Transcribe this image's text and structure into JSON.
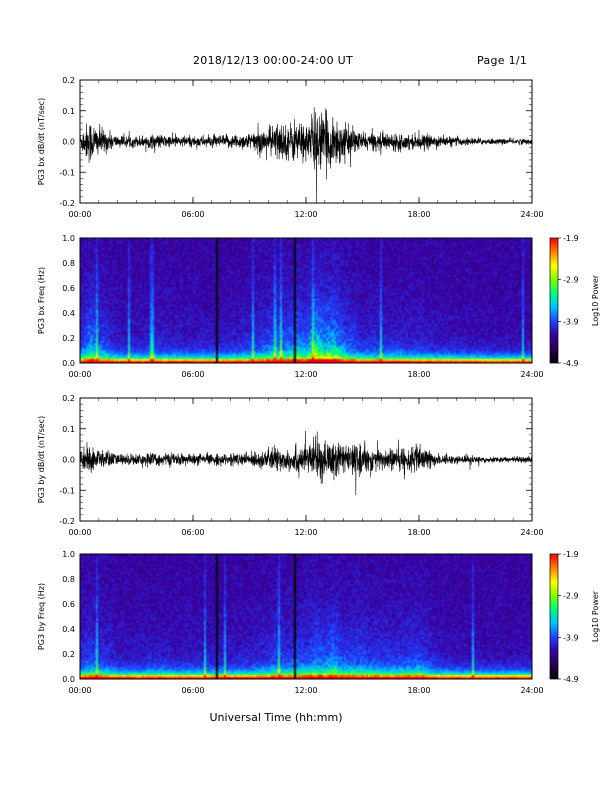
{
  "header": {
    "date_range": "2018/12/13  00:00-24:00 UT",
    "page": "Page 1/1"
  },
  "x_axis_label": "Universal Time (hh:mm)",
  "colors": {
    "trace": "#000000",
    "colorbar": [
      "#000000",
      "#2a0050",
      "#3a00a0",
      "#2040ff",
      "#00c0ff",
      "#00ff80",
      "#80ff00",
      "#ffff00",
      "#ff8000",
      "#ff0000"
    ]
  },
  "chart_data": [
    {
      "type": "line",
      "ylabel": "PG3 bx dB/dt (nT/sec)",
      "ylim": [
        -0.2,
        0.2
      ],
      "yticks": [
        "0.2",
        "0.1",
        "0.0",
        "-0.1",
        "-0.2"
      ],
      "xlim": [
        "00:00",
        "24:00"
      ],
      "xticks": [
        "00:00",
        "06:00",
        "12:00",
        "18:00",
        "24:00"
      ],
      "amplitude_envelope": {
        "hours": [
          0,
          0.5,
          1,
          2,
          3,
          4,
          5,
          6,
          7,
          8,
          9,
          10,
          10.5,
          11,
          11.5,
          12,
          12.5,
          13,
          13.5,
          14,
          15,
          16,
          17,
          18,
          19,
          20,
          22,
          24
        ],
        "amplitude": [
          0.03,
          0.08,
          0.05,
          0.02,
          0.02,
          0.025,
          0.02,
          0.02,
          0.02,
          0.025,
          0.03,
          0.05,
          0.07,
          0.06,
          0.08,
          0.06,
          0.12,
          0.09,
          0.1,
          0.06,
          0.03,
          0.03,
          0.03,
          0.025,
          0.02,
          0.015,
          0.01,
          0.01
        ]
      }
    },
    {
      "type": "heatmap",
      "ylabel": "PG3 bx Freq (Hz)",
      "ylim": [
        0.0,
        1.0
      ],
      "yticks": [
        "1.0",
        "0.8",
        "0.6",
        "0.4",
        "0.2",
        "0.0"
      ],
      "xticks": [
        "00:00",
        "06:00",
        "12:00",
        "18:00",
        "24:00"
      ],
      "colorbar": {
        "label": "Log10 Power",
        "ticks": [
          "-1.9",
          "-2.9",
          "-3.9",
          "-4.9"
        ],
        "range": [
          -4.9,
          -1.9
        ]
      },
      "data_gaps_hours": [
        7.2,
        11.4
      ]
    },
    {
      "type": "line",
      "ylabel": "PG3 by dB/dt (nT/sec)",
      "ylim": [
        -0.2,
        0.2
      ],
      "yticks": [
        "0.2",
        "0.1",
        "0.0",
        "-0.1",
        "-0.2"
      ],
      "xlim": [
        "00:00",
        "24:00"
      ],
      "xticks": [
        "00:00",
        "06:00",
        "12:00",
        "18:00",
        "24:00"
      ],
      "amplitude_envelope": {
        "hours": [
          0,
          0.5,
          1,
          2,
          3,
          4,
          5,
          6,
          7,
          8,
          9,
          10,
          10.5,
          11,
          11.5,
          12,
          12.5,
          13,
          13.5,
          14,
          15,
          16,
          17,
          18,
          19,
          20,
          22,
          24
        ],
        "amplitude": [
          0.03,
          0.05,
          0.04,
          0.02,
          0.02,
          0.025,
          0.02,
          0.02,
          0.02,
          0.02,
          0.025,
          0.035,
          0.05,
          0.04,
          0.05,
          0.05,
          0.07,
          0.06,
          0.08,
          0.05,
          0.05,
          0.04,
          0.04,
          0.05,
          0.02,
          0.015,
          0.01,
          0.01
        ]
      }
    },
    {
      "type": "heatmap",
      "ylabel": "PG3 by Freq (Hz)",
      "ylim": [
        0.0,
        1.0
      ],
      "yticks": [
        "1.0",
        "0.8",
        "0.6",
        "0.4",
        "0.2",
        "0.0"
      ],
      "xticks": [
        "00:00",
        "06:00",
        "12:00",
        "18:00",
        "24:00"
      ],
      "colorbar": {
        "label": "Log10 Power",
        "ticks": [
          "-1.9",
          "-2.9",
          "-3.9",
          "-4.9"
        ],
        "range": [
          -4.9,
          -1.9
        ]
      },
      "data_gaps_hours": [
        7.2,
        11.4
      ]
    }
  ]
}
